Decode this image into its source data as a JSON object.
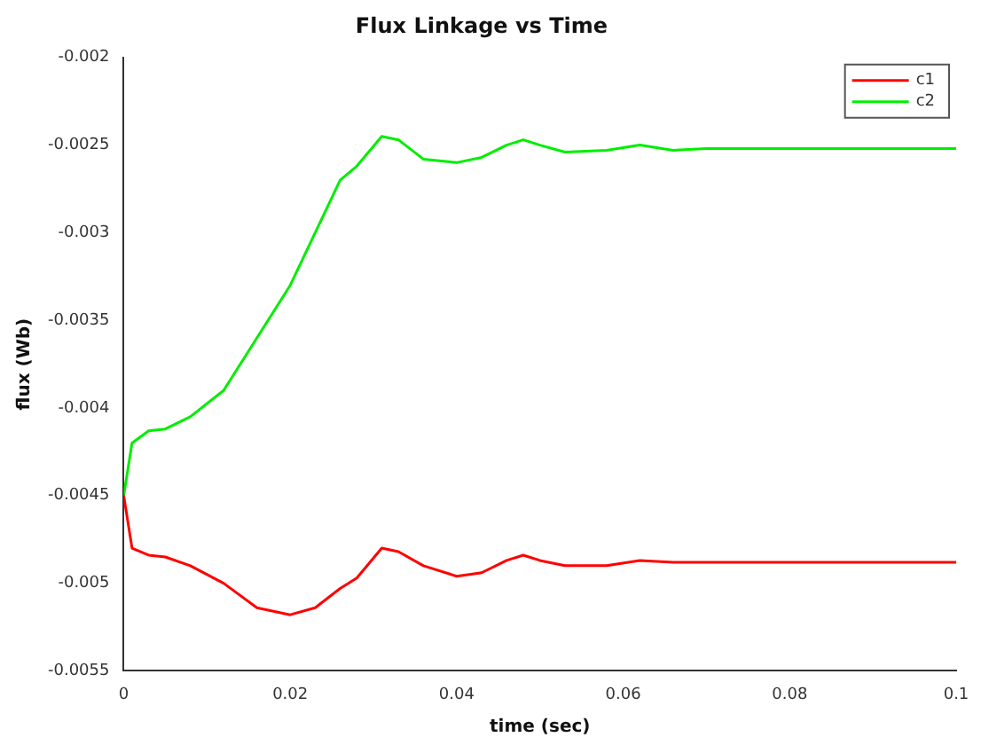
{
  "chart_data": {
    "type": "line",
    "title": "Flux Linkage vs Time",
    "xlabel": "time (sec)",
    "ylabel": "flux (Wb)",
    "xlim": [
      0,
      0.1
    ],
    "xticks": [
      0,
      0.02,
      0.04,
      0.06,
      0.08,
      0.1
    ],
    "ylim": [
      -0.0055,
      -0.002
    ],
    "yticks": [
      -0.0055,
      -0.005,
      -0.0045,
      -0.004,
      -0.0035,
      -0.003,
      -0.0025,
      -0.002
    ],
    "grid": false,
    "legend": "top right",
    "marker": "none",
    "line_style": "solid",
    "x": [
      0,
      0.001,
      0.003,
      0.005,
      0.008,
      0.012,
      0.016,
      0.02,
      0.023,
      0.026,
      0.028,
      0.031,
      0.033,
      0.036,
      0.04,
      0.043,
      0.046,
      0.048,
      0.05,
      0.053,
      0.058,
      0.062,
      0.066,
      0.07,
      0.08,
      0.1
    ],
    "series": [
      {
        "name": "c1",
        "color": "#ff0000",
        "values": [
          -0.0045,
          -0.0048,
          -0.00484,
          -0.00485,
          -0.0049,
          -0.005,
          -0.00514,
          -0.00518,
          -0.00514,
          -0.00503,
          -0.00497,
          -0.0048,
          -0.00482,
          -0.0049,
          -0.00496,
          -0.00494,
          -0.00487,
          -0.00484,
          -0.00487,
          -0.0049,
          -0.0049,
          -0.00487,
          -0.00488,
          -0.00488,
          -0.00488,
          -0.00488
        ]
      },
      {
        "name": "c2",
        "color": "#00ee00",
        "values": [
          -0.0045,
          -0.0042,
          -0.00413,
          -0.00412,
          -0.00405,
          -0.0039,
          -0.0036,
          -0.0033,
          -0.003,
          -0.0027,
          -0.00262,
          -0.00245,
          -0.00247,
          -0.00258,
          -0.0026,
          -0.00257,
          -0.0025,
          -0.00247,
          -0.0025,
          -0.00254,
          -0.00253,
          -0.0025,
          -0.00253,
          -0.00252,
          -0.00252,
          -0.00252
        ]
      }
    ]
  }
}
